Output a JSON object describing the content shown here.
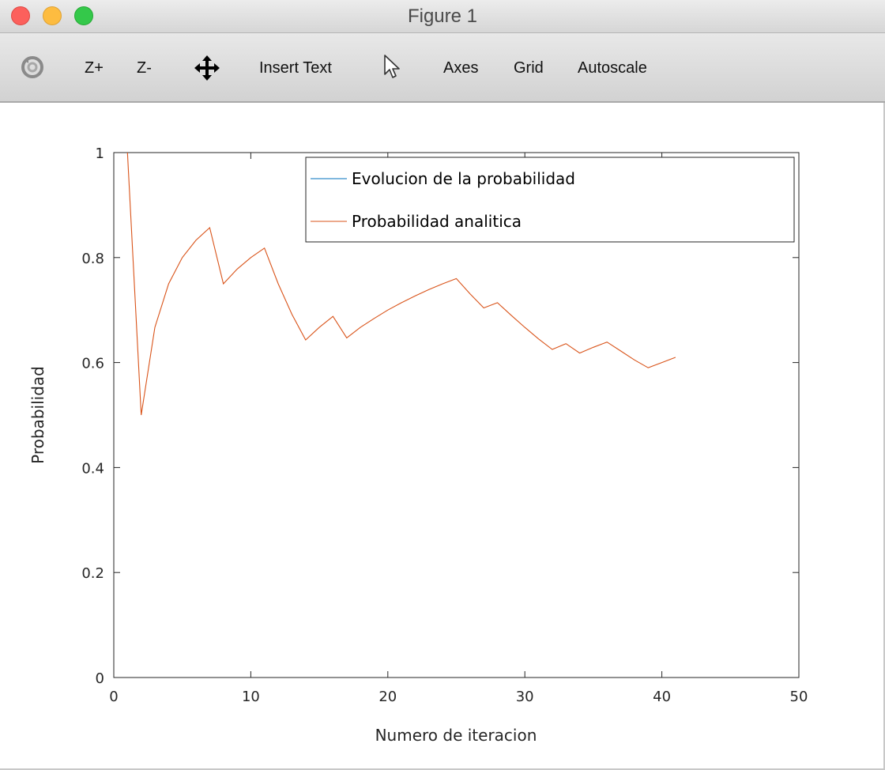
{
  "window": {
    "title": "Figure 1"
  },
  "toolbar": {
    "rotate_icon": "rotate-icon",
    "zoom_in_label": "Z+",
    "zoom_out_label": "Z-",
    "pan_icon": "pan-arrows-icon",
    "insert_text_label": "Insert Text",
    "select_icon": "pointer-arrow-icon",
    "axes_label": "Axes",
    "grid_label": "Grid",
    "autoscale_label": "Autoscale"
  },
  "colors": {
    "series1": "#0072bd",
    "series2": "#d95319",
    "axes": "#262626"
  },
  "chart_data": {
    "type": "line",
    "title": "",
    "xlabel": "Numero de iteracion",
    "ylabel": "Probabilidad",
    "xlim": [
      0,
      50
    ],
    "ylim": [
      0,
      1
    ],
    "xticks": [
      "0",
      "10",
      "20",
      "30",
      "40",
      "50"
    ],
    "yticks": [
      "0",
      "0.2",
      "0.4",
      "0.6",
      "0.8",
      "1"
    ],
    "xtick_values": [
      0,
      10,
      20,
      30,
      40,
      50
    ],
    "ytick_values": [
      0,
      0.2,
      0.4,
      0.6,
      0.8,
      1
    ],
    "grid": false,
    "legend_position": "top-right",
    "legend": [
      "Evolucion de la probabilidad",
      "Probabilidad analitica"
    ],
    "series": [
      {
        "name": "Evolucion de la probabilidad",
        "color": "#0072bd",
        "x": [],
        "y": []
      },
      {
        "name": "Probabilidad analitica",
        "color": "#d95319",
        "x": [
          1,
          2,
          3,
          4,
          5,
          6,
          7,
          8,
          9,
          10,
          11,
          12,
          13,
          14,
          15,
          16,
          17,
          18,
          19,
          20,
          21,
          22,
          23,
          24,
          25,
          26,
          27,
          28,
          29,
          30,
          31,
          32,
          33,
          34,
          35,
          36,
          37,
          38,
          39,
          40,
          41
        ],
        "y": [
          1.0,
          0.5,
          0.667,
          0.75,
          0.8,
          0.833,
          0.857,
          0.75,
          0.778,
          0.8,
          0.818,
          0.75,
          0.692,
          0.643,
          0.667,
          0.688,
          0.647,
          0.667,
          0.684,
          0.7,
          0.714,
          0.727,
          0.739,
          0.75,
          0.76,
          0.731,
          0.704,
          0.714,
          0.69,
          0.667,
          0.645,
          0.625,
          0.636,
          0.618,
          0.629,
          0.639,
          0.622,
          0.605,
          0.59,
          0.6,
          0.61
        ]
      }
    ]
  }
}
